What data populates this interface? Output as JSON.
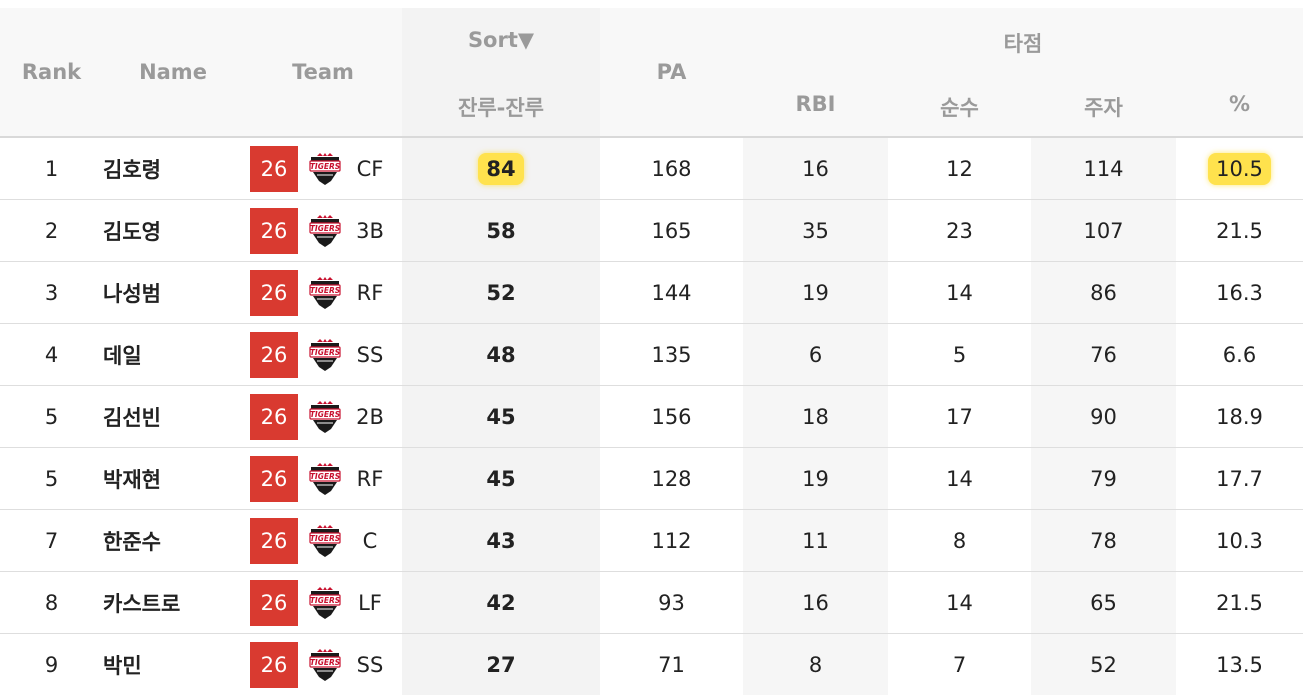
{
  "header": {
    "rank": "Rank",
    "name": "Name",
    "team": "Team",
    "sort": "Sort▼",
    "sort_sub": "잔루-잔루",
    "pa": "PA",
    "group": "타점",
    "rbi": "RBI",
    "pure": "순수",
    "runners": "주자",
    "pct": "%"
  },
  "team_logo": "tigers-logo",
  "colors": {
    "badge": "#d93a30",
    "highlight": "#ffe24d",
    "header_text": "#9a9a9a"
  },
  "rows": [
    {
      "rank": "1",
      "name": "김호령",
      "badge": "26",
      "pos": "CF",
      "sort": "84",
      "pa": "168",
      "rbi": "16",
      "pure": "12",
      "runners": "114",
      "pct": "10.5",
      "highlight": true
    },
    {
      "rank": "2",
      "name": "김도영",
      "badge": "26",
      "pos": "3B",
      "sort": "58",
      "pa": "165",
      "rbi": "35",
      "pure": "23",
      "runners": "107",
      "pct": "21.5",
      "highlight": false
    },
    {
      "rank": "3",
      "name": "나성범",
      "badge": "26",
      "pos": "RF",
      "sort": "52",
      "pa": "144",
      "rbi": "19",
      "pure": "14",
      "runners": "86",
      "pct": "16.3",
      "highlight": false
    },
    {
      "rank": "4",
      "name": "데일",
      "badge": "26",
      "pos": "SS",
      "sort": "48",
      "pa": "135",
      "rbi": "6",
      "pure": "5",
      "runners": "76",
      "pct": "6.6",
      "highlight": false
    },
    {
      "rank": "5",
      "name": "김선빈",
      "badge": "26",
      "pos": "2B",
      "sort": "45",
      "pa": "156",
      "rbi": "18",
      "pure": "17",
      "runners": "90",
      "pct": "18.9",
      "highlight": false
    },
    {
      "rank": "5",
      "name": "박재현",
      "badge": "26",
      "pos": "RF",
      "sort": "45",
      "pa": "128",
      "rbi": "19",
      "pure": "14",
      "runners": "79",
      "pct": "17.7",
      "highlight": false
    },
    {
      "rank": "7",
      "name": "한준수",
      "badge": "26",
      "pos": "C",
      "sort": "43",
      "pa": "112",
      "rbi": "11",
      "pure": "8",
      "runners": "78",
      "pct": "10.3",
      "highlight": false
    },
    {
      "rank": "8",
      "name": "카스트로",
      "badge": "26",
      "pos": "LF",
      "sort": "42",
      "pa": "93",
      "rbi": "16",
      "pure": "14",
      "runners": "65",
      "pct": "21.5",
      "highlight": false
    },
    {
      "rank": "9",
      "name": "박민",
      "badge": "26",
      "pos": "SS",
      "sort": "27",
      "pa": "71",
      "rbi": "8",
      "pure": "7",
      "runners": "52",
      "pct": "13.5",
      "highlight": false
    }
  ]
}
